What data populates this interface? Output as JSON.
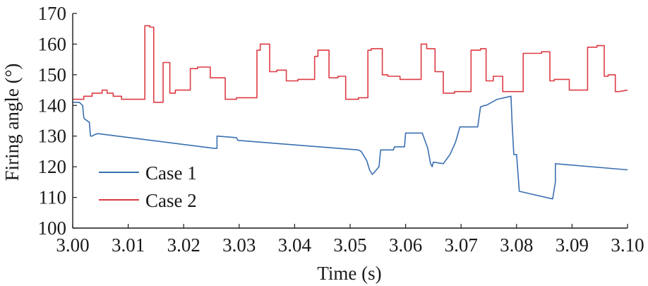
{
  "chart_data": {
    "type": "line",
    "xlabel": "Time (s)",
    "ylabel": "Firing angle (°)",
    "xlim": [
      3.0,
      3.1
    ],
    "ylim": [
      100,
      170
    ],
    "xticks": [
      "3.00",
      "3.01",
      "3.02",
      "3.03",
      "3.04",
      "3.05",
      "3.06",
      "3.07",
      "3.08",
      "3.09",
      "3.10"
    ],
    "yticks": [
      "100",
      "110",
      "120",
      "130",
      "140",
      "150",
      "160",
      "170"
    ],
    "legend_position": "lower-left",
    "grid": false,
    "series": [
      {
        "name": "Case 1",
        "color": "#3a6fb0",
        "x": [
          3.0,
          3.0012,
          3.0018,
          3.002,
          3.0022,
          3.003,
          3.0032,
          3.0035,
          3.004,
          3.0045,
          3.0255,
          3.026,
          3.026,
          3.0295,
          3.0298,
          3.0515,
          3.052,
          3.053,
          3.0535,
          3.054,
          3.0545,
          3.0552,
          3.0555,
          3.0565,
          3.0578,
          3.058,
          3.0585,
          3.059,
          3.0592,
          3.0598,
          3.06,
          3.0605,
          3.0615,
          3.063,
          3.064,
          3.0645,
          3.0648,
          3.065,
          3.0668,
          3.068,
          3.069,
          3.0698,
          3.0705,
          3.072,
          3.073,
          3.0735,
          3.0742,
          3.0745,
          3.0765,
          3.079,
          3.0792,
          3.0795,
          3.08,
          3.0805,
          3.0865,
          3.087,
          3.087,
          3.1
        ],
        "y": [
          141,
          141,
          140,
          136,
          135.5,
          134.5,
          130,
          130,
          130.5,
          130.8,
          126,
          126,
          130,
          129.5,
          128.6,
          125.5,
          125,
          122,
          119,
          117.5,
          118.5,
          120,
          125.5,
          125.5,
          125.5,
          126.5,
          126.5,
          126.5,
          126.5,
          126.5,
          131,
          131,
          131,
          131,
          126,
          121,
          120,
          121.5,
          121.0,
          124,
          128,
          133,
          133,
          133,
          133,
          139.5,
          140,
          140,
          142,
          143,
          134,
          124,
          124,
          112,
          109.5,
          115,
          121,
          119
        ]
      },
      {
        "name": "Case 2",
        "color": "#dd3b43",
        "x": [
          3.0,
          3.002,
          3.002,
          3.0035,
          3.0035,
          3.0053,
          3.0053,
          3.0062,
          3.0062,
          3.0073,
          3.0073,
          3.0088,
          3.0088,
          3.013,
          3.013,
          3.0139,
          3.0139,
          3.0146,
          3.0146,
          3.0163,
          3.0163,
          3.0175,
          3.0175,
          3.0185,
          3.0185,
          3.0212,
          3.0212,
          3.0225,
          3.0225,
          3.0248,
          3.0248,
          3.0275,
          3.0275,
          3.0295,
          3.0295,
          3.0332,
          3.0332,
          3.0338,
          3.0338,
          3.0355,
          3.0355,
          3.0368,
          3.0368,
          3.0385,
          3.0385,
          3.0406,
          3.0406,
          3.0436,
          3.0436,
          3.0442,
          3.0442,
          3.0462,
          3.0462,
          3.0478,
          3.0478,
          3.0492,
          3.0492,
          3.0515,
          3.0515,
          3.0532,
          3.0532,
          3.0538,
          3.0538,
          3.0558,
          3.0558,
          3.0568,
          3.0568,
          3.059,
          3.059,
          3.0628,
          3.0628,
          3.0638,
          3.0638,
          3.0653,
          3.0653,
          3.0668,
          3.0668,
          3.0688,
          3.0688,
          3.0718,
          3.0718,
          3.0735,
          3.0735,
          3.0745,
          3.0745,
          3.0758,
          3.0758,
          3.0775,
          3.0775,
          3.0812,
          3.0812,
          3.0845,
          3.0845,
          3.086,
          3.086,
          3.0868,
          3.0868,
          3.0895,
          3.0895,
          3.0928,
          3.0928,
          3.0945,
          3.0945,
          3.0958,
          3.0958,
          3.0965,
          3.0965,
          3.0978,
          3.0978,
          3.0985,
          3.1
        ],
        "y": [
          142,
          142,
          143,
          143,
          144,
          144,
          145,
          145,
          144,
          144,
          143,
          143,
          142,
          142,
          166,
          166,
          165.5,
          165.5,
          141,
          141,
          154,
          154,
          144,
          144,
          145,
          145,
          152,
          152,
          152.5,
          152.5,
          149,
          149,
          142,
          142,
          142.5,
          142.5,
          158,
          158,
          160,
          160,
          151,
          151,
          151.5,
          151.5,
          148,
          148,
          148.5,
          148.5,
          156,
          156,
          158,
          158,
          149,
          149,
          149.5,
          149.5,
          142,
          142,
          142.5,
          142.5,
          158,
          158,
          158.5,
          158.5,
          150,
          150,
          149.5,
          149.5,
          148.5,
          148.5,
          160,
          160,
          158.5,
          158.5,
          151,
          151,
          144,
          144,
          144.5,
          144.5,
          158,
          158,
          158.5,
          158.5,
          148,
          148,
          149.5,
          149.5,
          144.5,
          144.5,
          157,
          157,
          157.5,
          157.5,
          148,
          148,
          148.5,
          148.5,
          145,
          145,
          159,
          159,
          159.5,
          159.5,
          149.5,
          149.5,
          150,
          150,
          144.5,
          144.5,
          145
        ]
      }
    ]
  }
}
